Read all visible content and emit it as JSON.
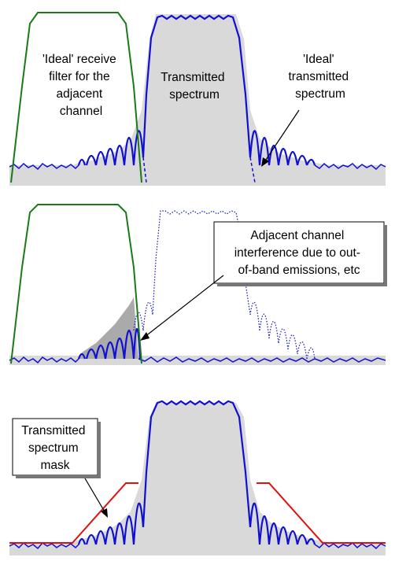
{
  "panels": [
    {
      "id": "top",
      "labels": {
        "receive_filter": [
          "'Ideal' receive",
          "filter for the",
          "adjacent",
          "channel"
        ],
        "transmitted": [
          "Transmitted",
          "spectrum"
        ],
        "ideal_transmitted": [
          "'Ideal'",
          "transmitted",
          "spectrum"
        ]
      }
    },
    {
      "id": "middle",
      "labels": {
        "interference": [
          "Adjacent channel",
          "interference due to out-",
          "of-band emissions, etc"
        ]
      }
    },
    {
      "id": "bottom",
      "labels": {
        "mask": [
          "Transmitted",
          "spectrum",
          "mask"
        ]
      }
    }
  ],
  "colors": {
    "receive_filter": "#1a7a1a",
    "transmitted": "#1010d0",
    "mask": "#e01010",
    "shade": "#d9d9d9",
    "noise_floor": "#1010d0"
  }
}
